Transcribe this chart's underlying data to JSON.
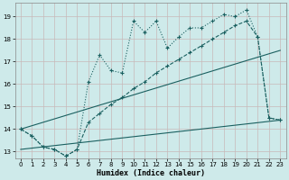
{
  "xlabel": "Humidex (Indice chaleur)",
  "bg_color": "#ceeaea",
  "grid_color": "#e0f0f0",
  "line_color": "#1a6060",
  "xlim": [
    -0.5,
    23.5
  ],
  "ylim": [
    12.7,
    19.6
  ],
  "yticks": [
    13,
    14,
    15,
    16,
    17,
    18,
    19
  ],
  "xticks": [
    0,
    1,
    2,
    3,
    4,
    5,
    6,
    7,
    8,
    9,
    10,
    11,
    12,
    13,
    14,
    15,
    16,
    17,
    18,
    19,
    20,
    21,
    22,
    23
  ],
  "series1_x": [
    0,
    1,
    2,
    3,
    4,
    5,
    6,
    7,
    8,
    9,
    10,
    11,
    12,
    13,
    14,
    15,
    16,
    17,
    18,
    19,
    20,
    21,
    22,
    23
  ],
  "series1_y": [
    14.0,
    13.7,
    13.2,
    13.1,
    12.8,
    13.1,
    16.1,
    17.3,
    16.6,
    16.5,
    18.8,
    18.3,
    18.8,
    17.6,
    18.1,
    18.5,
    18.5,
    18.8,
    19.1,
    19.0,
    19.3,
    18.1,
    14.5,
    14.4
  ],
  "series2_x": [
    0,
    1,
    2,
    3,
    4,
    5,
    6,
    7,
    8,
    9,
    10,
    11,
    12,
    13,
    14,
    15,
    16,
    17,
    18,
    19,
    20,
    21,
    22,
    23
  ],
  "series2_y": [
    14.0,
    13.7,
    13.2,
    13.1,
    12.8,
    13.1,
    14.3,
    14.7,
    15.1,
    15.4,
    15.8,
    16.1,
    16.5,
    16.8,
    17.1,
    17.4,
    17.7,
    18.0,
    18.3,
    18.6,
    18.8,
    18.1,
    14.5,
    14.4
  ],
  "series3_x": [
    0,
    23
  ],
  "series3_y": [
    14.0,
    17.5
  ],
  "series4_x": [
    0,
    23
  ],
  "series4_y": [
    13.1,
    14.4
  ]
}
